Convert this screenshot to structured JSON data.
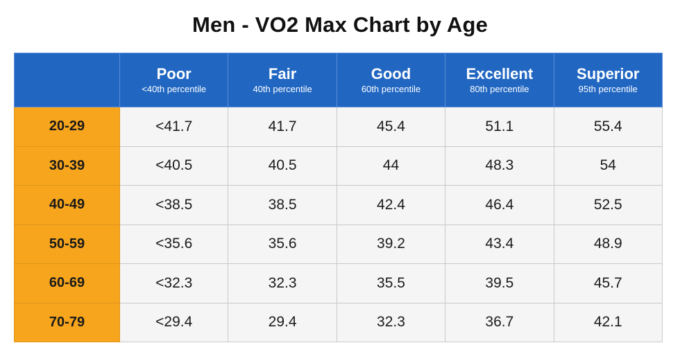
{
  "title": "Men - VO2 Max Chart by Age",
  "colors": {
    "header_bg": "#2167c2",
    "age_bg": "#f6a51d",
    "cell_bg": "#f5f5f5"
  },
  "chart_data": {
    "type": "table",
    "title": "Men - VO2 Max Chart by Age",
    "columns": [
      {
        "name": "Poor",
        "sub": "<40th percentile"
      },
      {
        "name": "Fair",
        "sub": "40th percentile"
      },
      {
        "name": "Good",
        "sub": "60th percentile"
      },
      {
        "name": "Excellent",
        "sub": "80th percentile"
      },
      {
        "name": "Superior",
        "sub": "95th percentile"
      }
    ],
    "rows": [
      {
        "age": "20-29",
        "values": [
          "<41.7",
          "41.7",
          "45.4",
          "51.1",
          "55.4"
        ]
      },
      {
        "age": "30-39",
        "values": [
          "<40.5",
          "40.5",
          "44",
          "48.3",
          "54"
        ]
      },
      {
        "age": "40-49",
        "values": [
          "<38.5",
          "38.5",
          "42.4",
          "46.4",
          "52.5"
        ]
      },
      {
        "age": "50-59",
        "values": [
          "<35.6",
          "35.6",
          "39.2",
          "43.4",
          "48.9"
        ]
      },
      {
        "age": "60-69",
        "values": [
          "<32.3",
          "32.3",
          "35.5",
          "39.5",
          "45.7"
        ]
      },
      {
        "age": "70-79",
        "values": [
          "<29.4",
          "29.4",
          "32.3",
          "36.7",
          "42.1"
        ]
      }
    ]
  }
}
